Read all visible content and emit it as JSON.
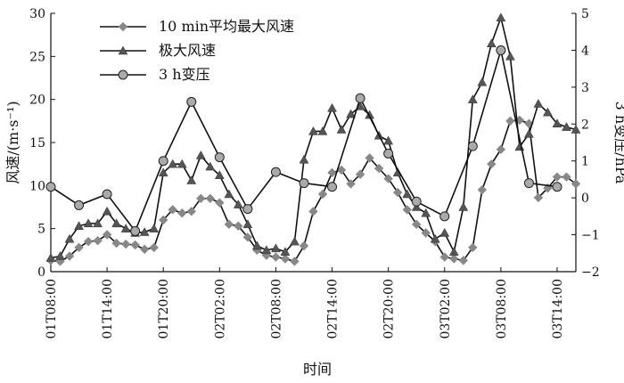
{
  "chart_data": {
    "type": "line",
    "xlabel": "时间",
    "ylabel_left": "风速/(m·s⁻¹)",
    "ylabel_right": "3 h变压/hPa",
    "ylim_left": [
      0,
      30
    ],
    "ylim_right": [
      -2,
      5
    ],
    "yticks_left": [
      0,
      5,
      10,
      15,
      20,
      25,
      30
    ],
    "yticks_right": [
      -2,
      -1,
      0,
      1,
      2,
      3,
      4,
      5
    ],
    "xlim_hours": [
      0,
      56
    ],
    "xticks": [
      {
        "label": "01T08:00",
        "hour": 0
      },
      {
        "label": "01T14:00",
        "hour": 6
      },
      {
        "label": "01T20:00",
        "hour": 12
      },
      {
        "label": "02T02:00",
        "hour": 18
      },
      {
        "label": "02T08:00",
        "hour": 24
      },
      {
        "label": "02T14:00",
        "hour": 30
      },
      {
        "label": "02T20:00",
        "hour": 36
      },
      {
        "label": "03T02:00",
        "hour": 42
      },
      {
        "label": "03T08:00",
        "hour": 48
      },
      {
        "label": "03T14:00",
        "hour": 54
      }
    ],
    "legend_position": "top-left",
    "grid": false,
    "series": [
      {
        "name": "10 min平均最大风速",
        "axis": "left",
        "marker": "diamond",
        "color": "#888888",
        "x_hours": [
          0,
          1,
          2,
          3,
          4,
          5,
          6,
          7,
          8,
          9,
          10,
          11,
          12,
          13,
          14,
          15,
          16,
          17,
          18,
          19,
          20,
          21,
          22,
          23,
          24,
          25,
          26,
          27,
          28,
          29,
          30,
          31,
          32,
          33,
          34,
          35,
          36,
          37,
          38,
          39,
          40,
          41,
          42,
          43,
          44,
          45,
          46,
          47,
          48,
          49,
          50,
          51,
          52,
          53,
          54,
          55,
          56
        ],
        "values": [
          1.3,
          1.2,
          1.8,
          2.8,
          3.5,
          3.6,
          4.3,
          3.3,
          3.2,
          3.1,
          2.6,
          2.8,
          6.0,
          7.2,
          6.8,
          7.0,
          8.5,
          8.5,
          8.0,
          5.5,
          5.3,
          4.0,
          2.5,
          1.9,
          1.7,
          1.5,
          1.2,
          3.0,
          7.0,
          9.0,
          11.5,
          11.8,
          10.2,
          11.3,
          13.2,
          12.0,
          10.8,
          9.2,
          7.2,
          5.5,
          4.5,
          3.5,
          1.7,
          1.5,
          1.3,
          2.8,
          9.5,
          12.5,
          14.2,
          17.5,
          17.6,
          17.2,
          8.6,
          9.7,
          11.0,
          11.0,
          10.2
        ]
      },
      {
        "name": "极大风速",
        "axis": "left",
        "marker": "triangle",
        "color": "#555555",
        "x_hours": [
          0,
          1,
          2,
          3,
          4,
          5,
          6,
          7,
          8,
          9,
          10,
          11,
          12,
          13,
          14,
          15,
          16,
          17,
          18,
          19,
          20,
          21,
          22,
          23,
          24,
          25,
          26,
          27,
          28,
          29,
          30,
          31,
          32,
          33,
          34,
          35,
          36,
          37,
          38,
          39,
          40,
          41,
          42,
          43,
          44,
          45,
          46,
          47,
          48,
          49,
          50,
          51,
          52,
          53,
          54,
          55,
          56
        ],
        "values": [
          1.6,
          1.8,
          3.8,
          5.3,
          5.6,
          5.6,
          7.0,
          5.6,
          5.0,
          4.5,
          4.6,
          5.0,
          11.5,
          12.5,
          12.5,
          10.6,
          13.5,
          12.2,
          11.2,
          9.0,
          7.8,
          5.5,
          3.0,
          2.5,
          2.7,
          2.3,
          3.5,
          13.0,
          16.3,
          16.3,
          19.0,
          16.5,
          18.3,
          19.2,
          18.2,
          15.8,
          15.2,
          11.5,
          9.0,
          7.5,
          6.8,
          3.8,
          4.5,
          2.3,
          7.5,
          20.0,
          22.0,
          26.5,
          29.5,
          25.0,
          14.5,
          16.0,
          19.5,
          18.5,
          17.2,
          16.8,
          16.5
        ]
      },
      {
        "name": "3 h变压",
        "axis": "right",
        "marker": "circle",
        "color": "#aaaaaa",
        "x_hours": [
          0,
          3,
          6,
          9,
          12,
          15,
          18,
          21,
          24,
          27,
          30,
          33,
          36,
          39,
          42,
          45,
          48,
          51,
          54
        ],
        "values": [
          0.3,
          -0.2,
          0.1,
          -0.9,
          1.0,
          2.6,
          1.1,
          -0.3,
          0.7,
          0.4,
          0.3,
          2.7,
          1.2,
          -0.1,
          -0.5,
          1.4,
          4.0,
          0.4,
          0.3
        ]
      }
    ]
  }
}
